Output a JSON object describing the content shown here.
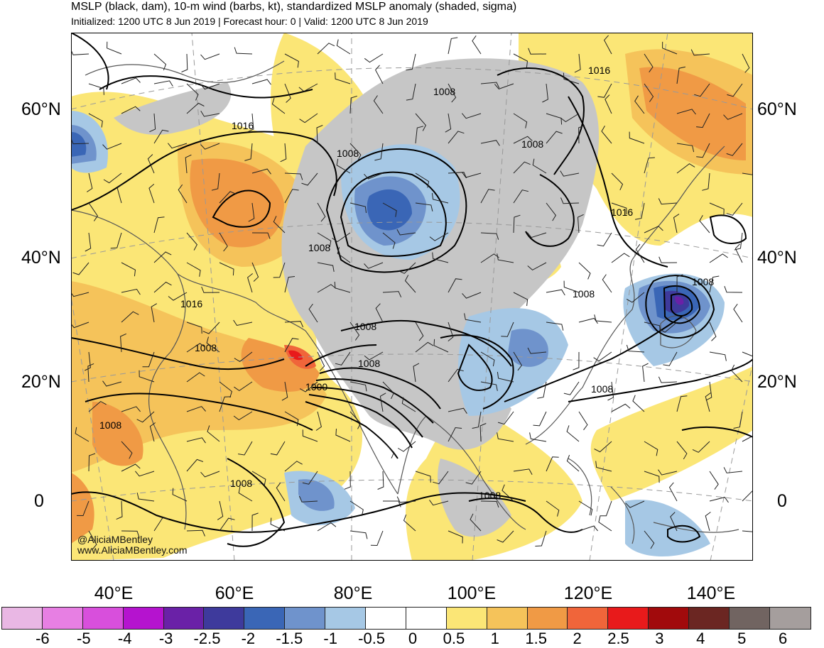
{
  "header": {
    "title": "MSLP (black, dam), 10-m wind (barbs, kt), standardized MSLP anomaly (shaded, sigma)",
    "subtitle": "Initialized: 1200 UTC 8 Jun 2019 | Forecast hour: 0 | Valid: 1200 UTC 8 Jun 2019"
  },
  "axes": {
    "lat_labels": [
      "60°N",
      "40°N",
      "20°N",
      "0"
    ],
    "lon_labels": [
      "40°E",
      "60°E",
      "80°E",
      "100°E",
      "120°E",
      "140°E"
    ]
  },
  "contour_labels": [
    "1008",
    "1016",
    "1008",
    "1016",
    "1008",
    "1016",
    "1016",
    "1008",
    "1008",
    "1008",
    "1008",
    "1008",
    "1000",
    "1008",
    "1008",
    "1008",
    "1008",
    "1008"
  ],
  "credit": {
    "handle": "@AliciaMBentley",
    "site": "www.AliciaMBentley.com"
  },
  "colorbar": {
    "colors": [
      "#e9b7e4",
      "#e77fe3",
      "#d84fdc",
      "#b513cf",
      "#6a21a7",
      "#3e3a9c",
      "#3a66b6",
      "#6f93cc",
      "#a6c8e5",
      "#ffffff",
      "#ffffff",
      "#fbe676",
      "#f5c35a",
      "#f09a45",
      "#f0653a",
      "#e81a1b",
      "#a10a0c",
      "#6b2622",
      "#716461",
      "#a59e9d"
    ],
    "tick_labels": [
      "-6",
      "-5",
      "-4",
      "-3",
      "-2.5",
      "-2",
      "-1.5",
      "-1",
      "-0.5",
      "0",
      "0.5",
      "1",
      "1.5",
      "2",
      "2.5",
      "3",
      "4",
      "5",
      "6"
    ]
  }
}
